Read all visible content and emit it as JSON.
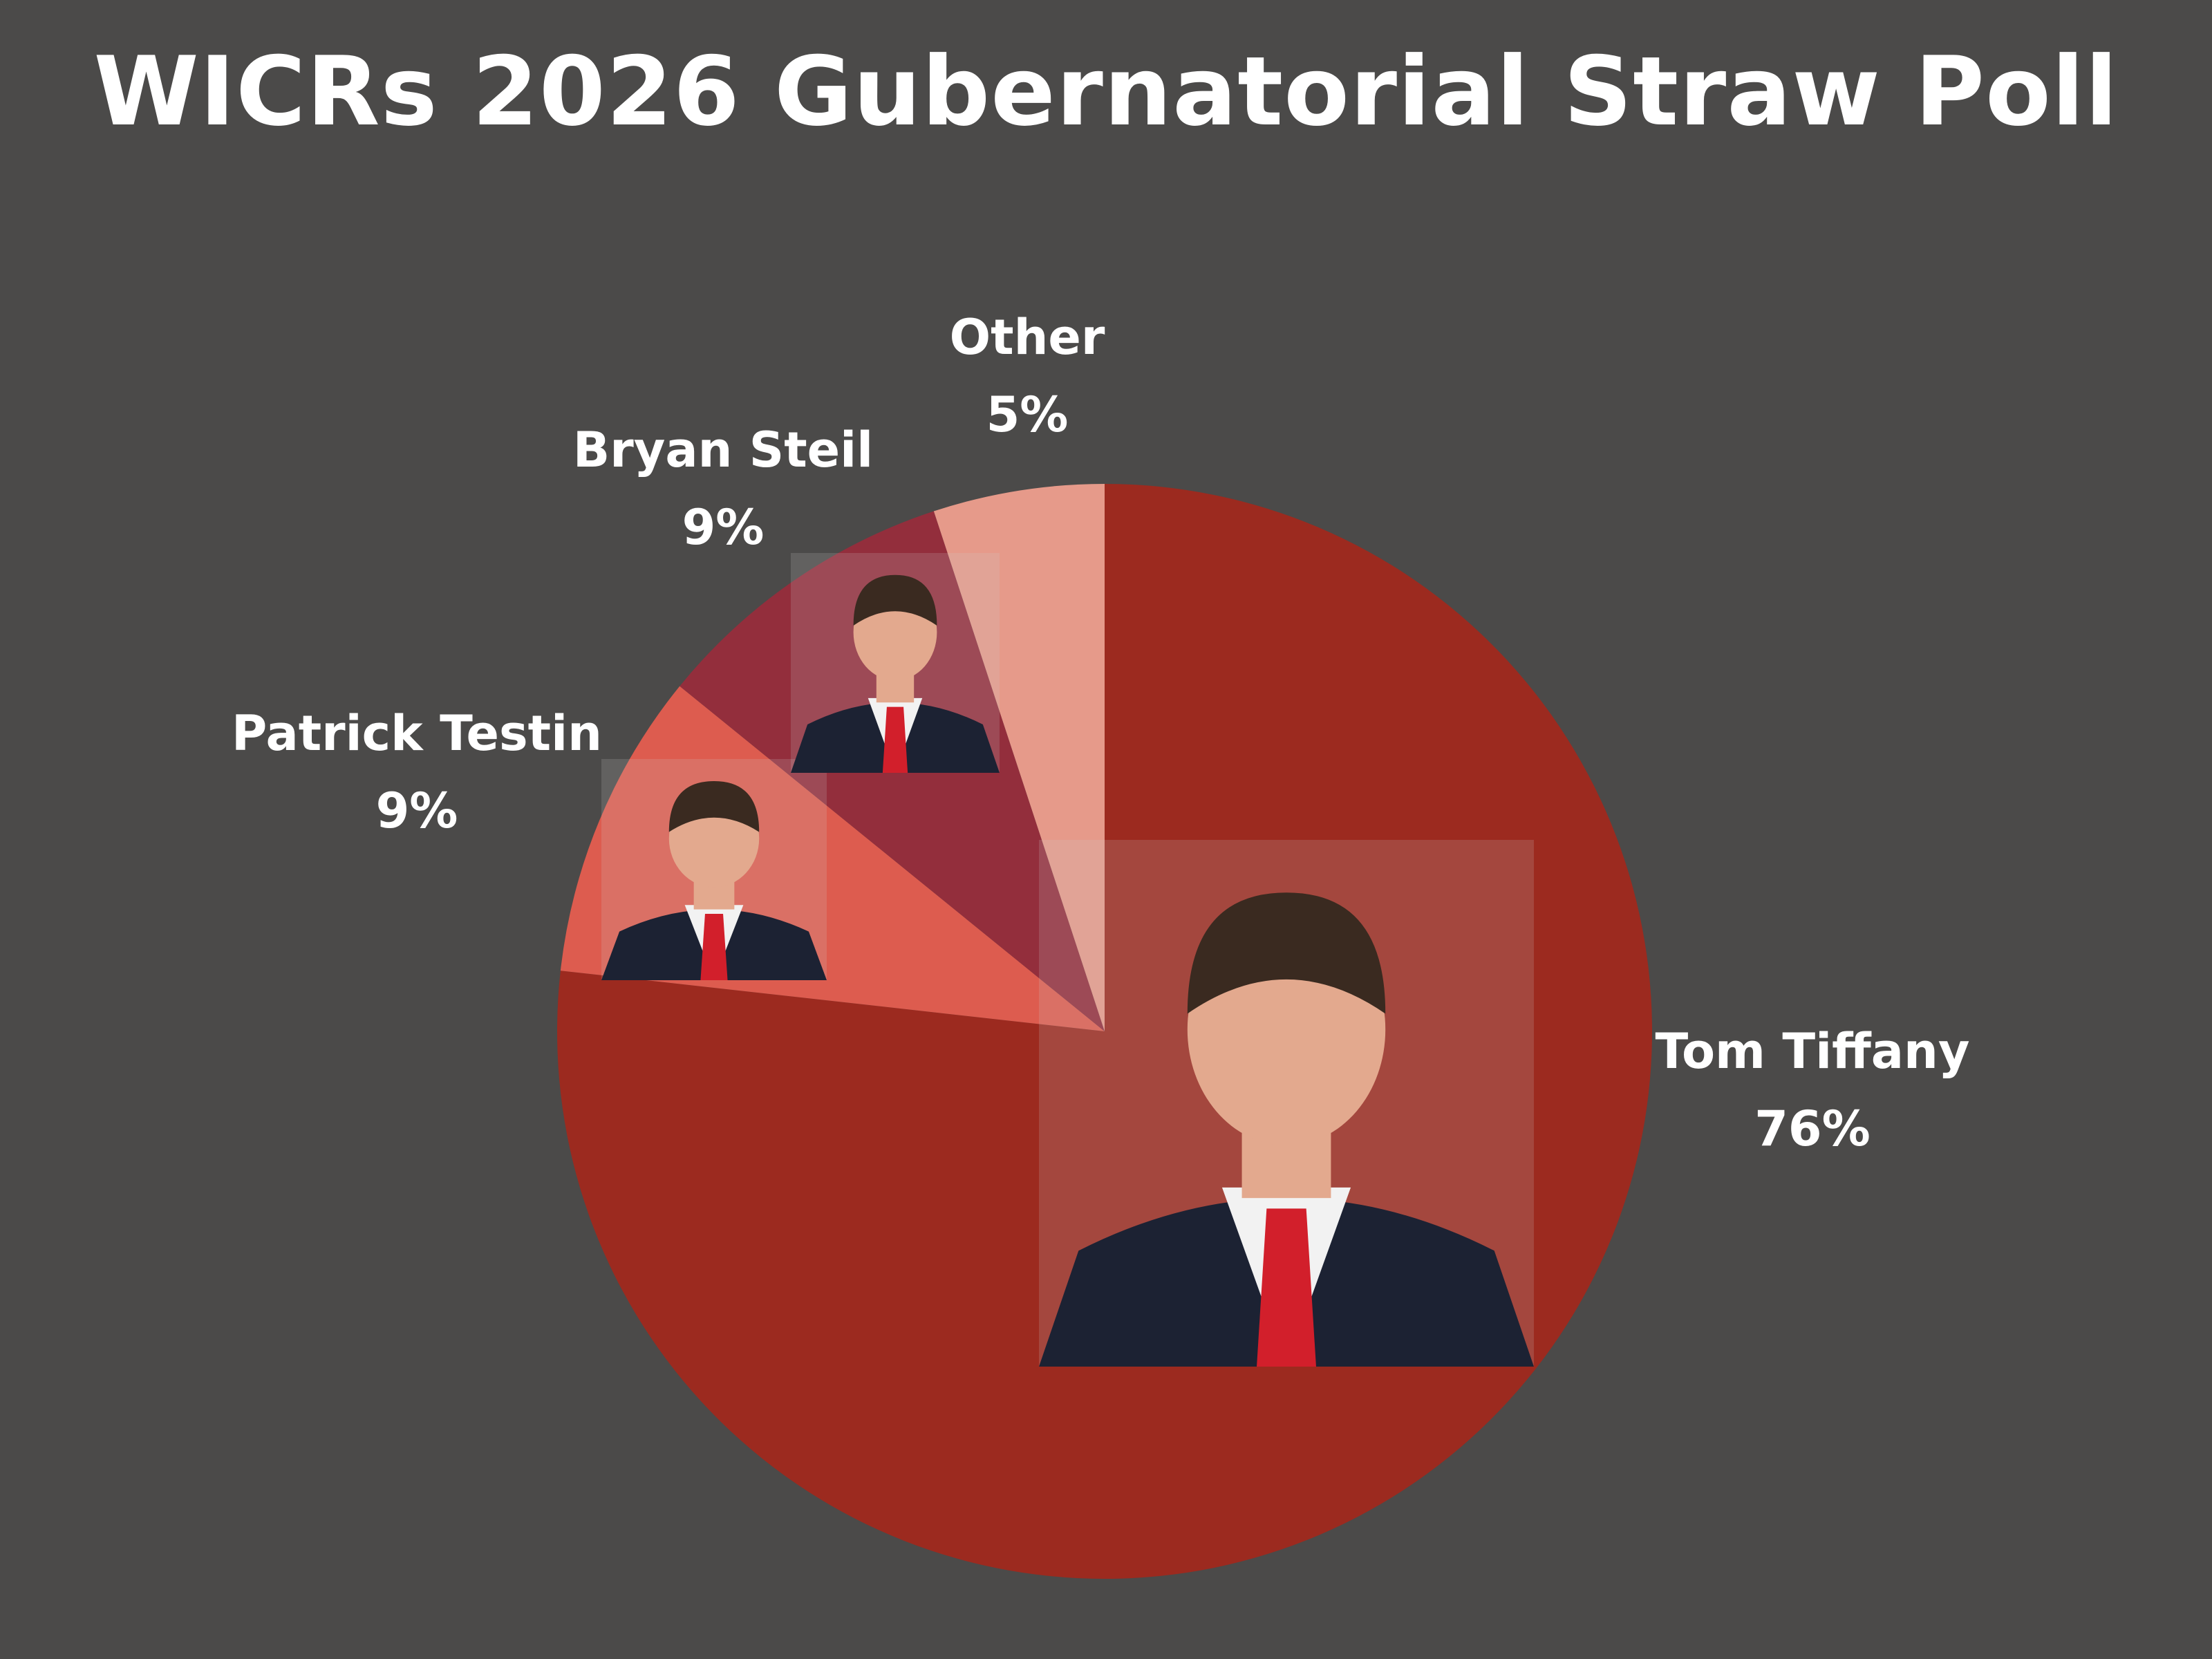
{
  "chart_data": {
    "type": "pie",
    "title": "WICRs 2026 Gubernatorial Straw Poll",
    "start": "top, clockwise",
    "slices": [
      {
        "name": "Tom Tiffany",
        "value": 76,
        "label": "76%",
        "color": "#9c2a1f",
        "photo": "tom-tiffany-photo"
      },
      {
        "name": "Patrick Testin",
        "value": 9,
        "label": "9%",
        "color": "#dd5c4f",
        "photo": "patrick-testin-photo"
      },
      {
        "name": "Bryan Steil",
        "value": 9,
        "label": "9%",
        "color": "#932e3c",
        "photo": "bryan-steil-photo"
      },
      {
        "name": "Other",
        "value": 5,
        "label": "5%",
        "color": "#e69a8a",
        "photo": ""
      }
    ],
    "background_color": "#4b4a49"
  }
}
